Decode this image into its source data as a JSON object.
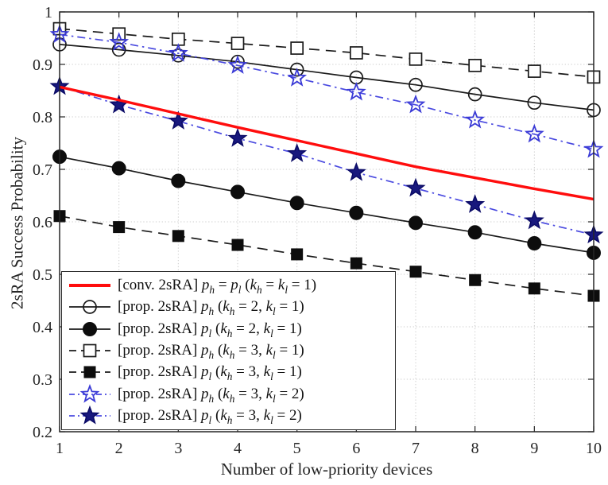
{
  "figure": {
    "background": "#ffffff",
    "axis_color": "#262626",
    "grid_color": "#cccccc"
  },
  "chart_data": {
    "type": "line",
    "title": "",
    "xlabel": "Number of low-priority devices",
    "ylabel": "2sRA Success Probability",
    "xlim": [
      1,
      10
    ],
    "ylim": [
      0.2,
      1
    ],
    "xticks": [
      1,
      2,
      3,
      4,
      5,
      6,
      7,
      8,
      9,
      10
    ],
    "xtick_labels": [
      "1",
      "2",
      "3",
      "4",
      "5",
      "6",
      "7",
      "8",
      "9",
      "10"
    ],
    "yticks": [
      0.2,
      0.3,
      0.4,
      0.5,
      0.6,
      0.7,
      0.8,
      0.9,
      1
    ],
    "ytick_labels": [
      "0.2",
      "0.3",
      "0.4",
      "0.5",
      "0.6",
      "0.7",
      "0.8",
      "0.9",
      "1"
    ],
    "grid": true,
    "legend_position": "inside-bottom-left",
    "x": [
      1,
      2,
      3,
      4,
      5,
      6,
      7,
      8,
      9,
      10
    ],
    "series": [
      {
        "name": "[conv. 2sRA] p_h = p_l (k_h = k_l = 1)",
        "color": "#ff0d0d",
        "line": "solid",
        "width": 3.4,
        "marker": "none",
        "values": [
          0.857,
          0.832,
          0.806,
          0.78,
          0.755,
          0.73,
          0.705,
          0.684,
          0.663,
          0.643
        ]
      },
      {
        "name": "[prop. 2sRA] p_h (k_h = 2, k_l = 1)",
        "color": "#1a1a1a",
        "line": "solid",
        "width": 1.7,
        "marker": "circle-open",
        "values": [
          0.938,
          0.928,
          0.917,
          0.905,
          0.89,
          0.875,
          0.861,
          0.843,
          0.827,
          0.813
        ]
      },
      {
        "name": "[prop. 2sRA] p_l (k_h = 2, k_l = 1)",
        "color": "#1a1a1a",
        "line": "solid",
        "width": 1.7,
        "marker": "circle-filled",
        "values": [
          0.724,
          0.702,
          0.678,
          0.657,
          0.636,
          0.617,
          0.598,
          0.58,
          0.559,
          0.541
        ]
      },
      {
        "name": "[prop. 2sRA] p_h (k_h = 3, k_l = 1)",
        "color": "#1a1a1a",
        "line": "dashed",
        "width": 1.7,
        "marker": "square-open",
        "values": [
          0.968,
          0.958,
          0.948,
          0.94,
          0.931,
          0.922,
          0.91,
          0.898,
          0.887,
          0.876
        ]
      },
      {
        "name": "[prop. 2sRA] p_l (k_h = 3, k_l = 1)",
        "color": "#1a1a1a",
        "line": "dashed",
        "width": 1.7,
        "marker": "square-filled",
        "values": [
          0.611,
          0.59,
          0.573,
          0.556,
          0.538,
          0.521,
          0.505,
          0.489,
          0.473,
          0.459
        ]
      },
      {
        "name": "[prop. 2sRA] p_h (k_h = 3, k_l = 2)",
        "color": "#4a4ae0",
        "line": "dashdot",
        "width": 1.7,
        "marker": "star-open",
        "values": [
          0.957,
          0.942,
          0.921,
          0.898,
          0.874,
          0.847,
          0.823,
          0.794,
          0.767,
          0.738
        ]
      },
      {
        "name": "[prop. 2sRA] p_l (k_h = 3, k_l = 2)",
        "color": "#4a4ae0",
        "line": "dashdot",
        "width": 1.7,
        "marker": "star-filled",
        "values": [
          0.858,
          0.823,
          0.792,
          0.759,
          0.73,
          0.694,
          0.664,
          0.633,
          0.602,
          0.575
        ]
      }
    ],
    "marker_colors": {
      "open_edge": "#1a1a1a",
      "filled_fill": "#0d0d0d",
      "star_open_edge": "#3a3ad6",
      "star_filled_fill": "#18187d",
      "star_filled_edge": "#0a0a66"
    }
  }
}
